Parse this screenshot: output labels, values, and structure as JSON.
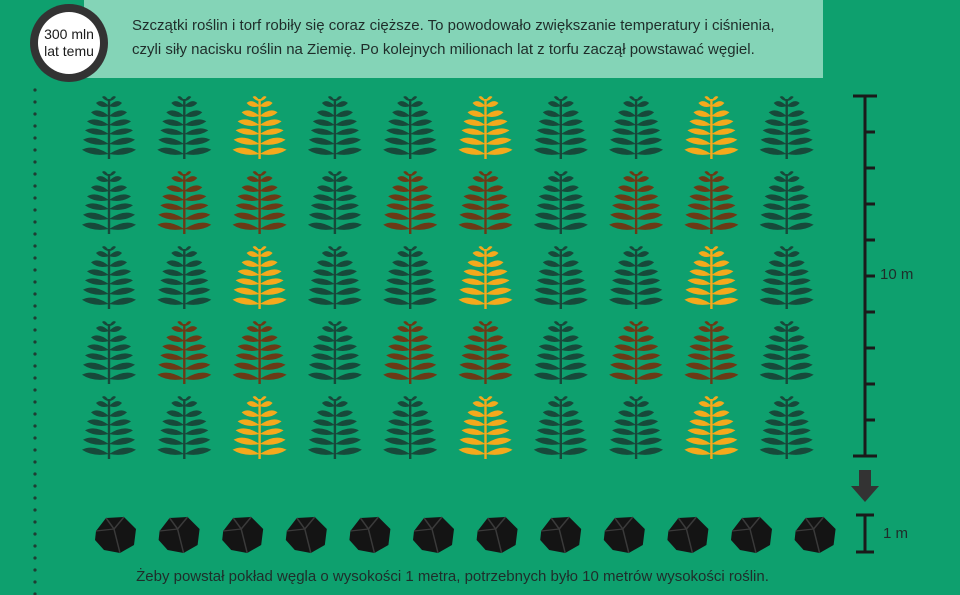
{
  "header": {
    "era_line1": "300 mln",
    "era_line2": "lat temu",
    "description_line1": "Szczątki roślin i torf robiły się coraz cięższe. To powodowało zwiększanie temperatury i ciśnienia,",
    "description_line2": "czyli siły nacisku roślin na Ziemię. Po kolejnych milionach lat z torfu zaczął powstawać węgiel."
  },
  "plants": {
    "rows": [
      [
        "green",
        "green",
        "yellow",
        "green",
        "green",
        "yellow",
        "green",
        "green",
        "yellow",
        "green"
      ],
      [
        "green",
        "brown",
        "brown",
        "green",
        "brown",
        "brown",
        "green",
        "brown",
        "brown",
        "green"
      ],
      [
        "green",
        "green",
        "yellow",
        "green",
        "green",
        "yellow",
        "green",
        "green",
        "yellow",
        "green"
      ],
      [
        "green",
        "brown",
        "brown",
        "green",
        "brown",
        "brown",
        "green",
        "brown",
        "brown",
        "green"
      ],
      [
        "green",
        "green",
        "yellow",
        "green",
        "green",
        "yellow",
        "green",
        "green",
        "yellow",
        "green"
      ]
    ],
    "colors": {
      "green": "#17493a",
      "yellow": "#f4a91c",
      "brown": "#6b3a16"
    }
  },
  "coal": {
    "count": 12,
    "color": "#141414"
  },
  "scale": {
    "plants_label": "10 m",
    "coal_label": "1 m"
  },
  "caption": "Żeby powstał pokład węgla o wysokości 1 metra, potrzebnych było 10 metrów wysokości roślin."
}
